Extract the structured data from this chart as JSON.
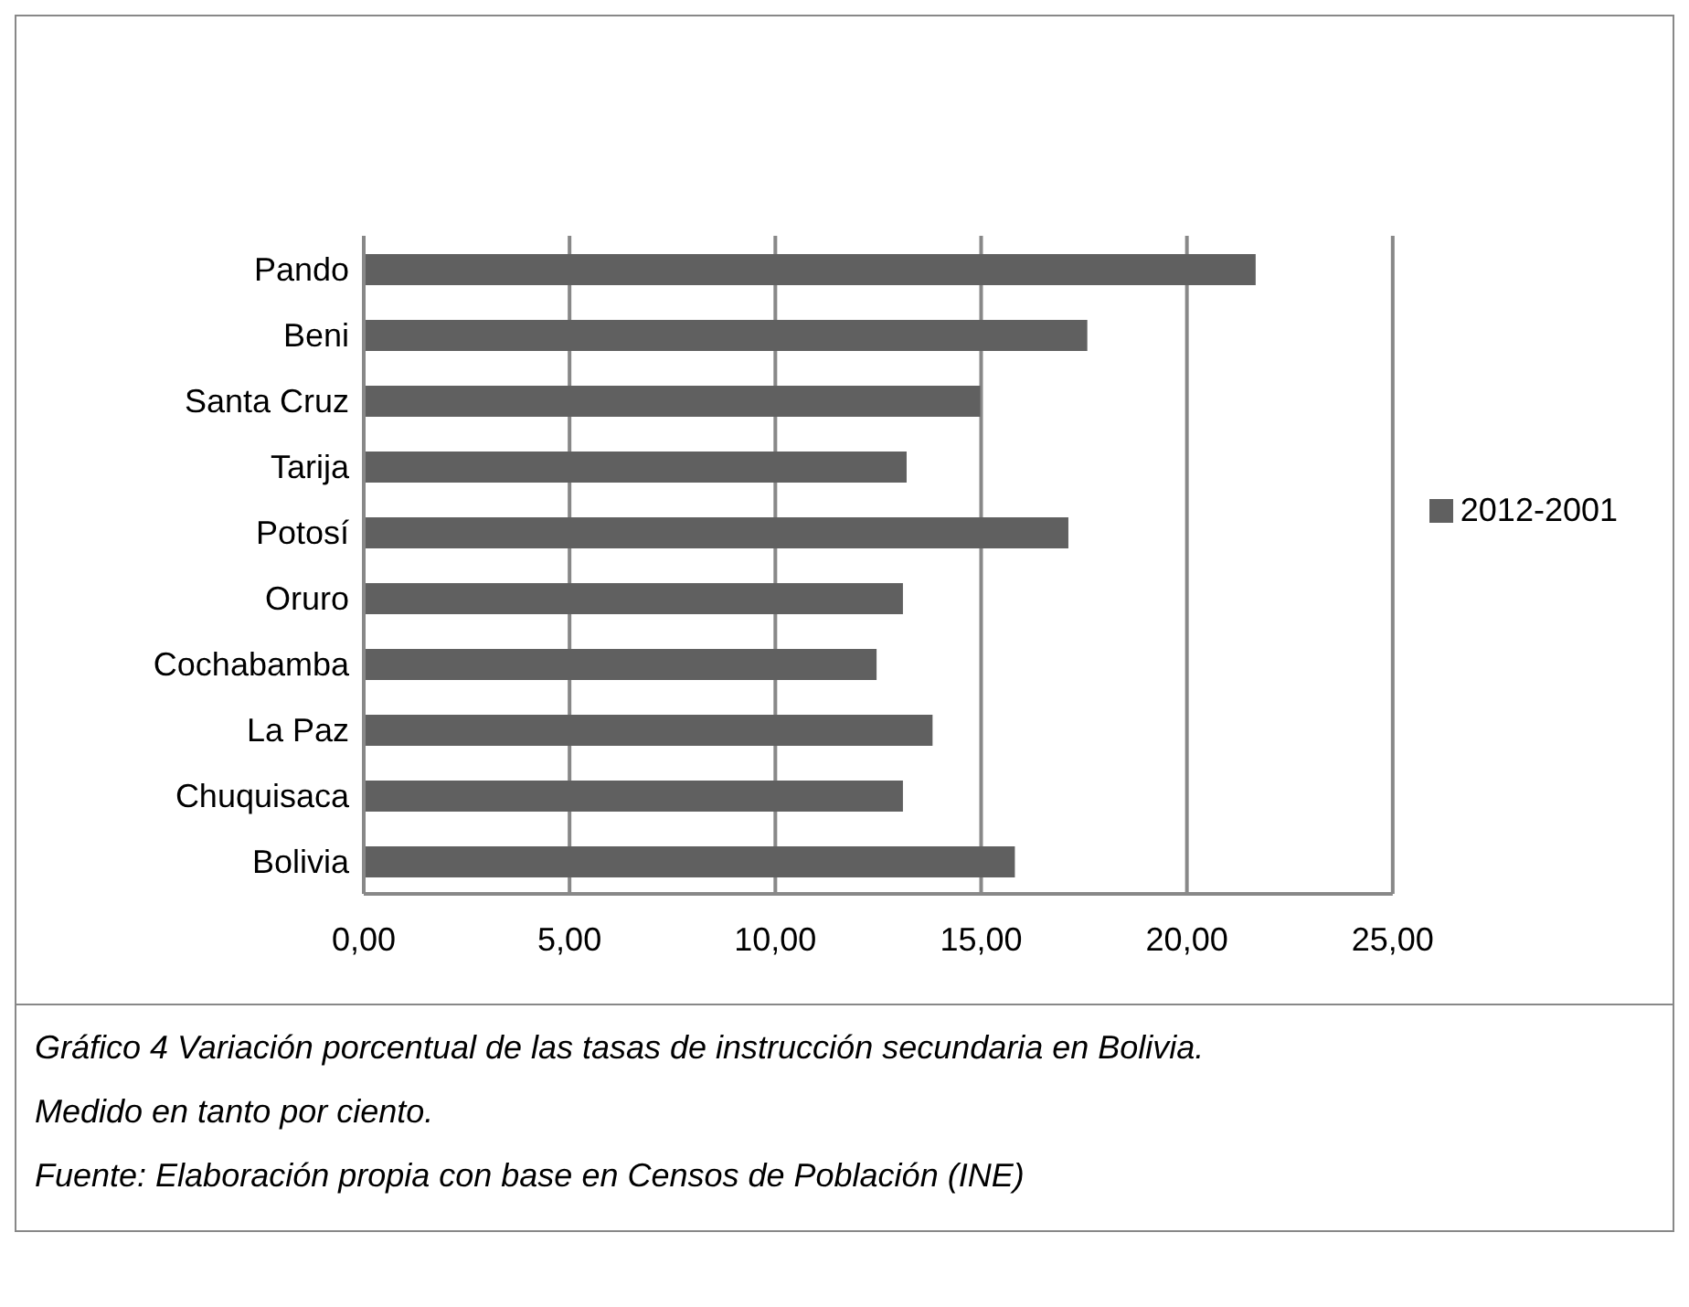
{
  "chart_data": {
    "type": "bar",
    "orientation": "horizontal",
    "categories": [
      "Pando",
      "Beni",
      "Santa Cruz",
      "Tarija",
      "Potosí",
      "Oruro",
      "Cochabamba",
      "La Paz",
      "Chuquisaca",
      "Bolivia"
    ],
    "series": [
      {
        "name": "2012-2001",
        "color": "#606060",
        "values": [
          21.67,
          17.58,
          14.98,
          13.19,
          17.12,
          13.1,
          12.46,
          13.82,
          13.1,
          15.82
        ]
      }
    ],
    "xlim": [
      0,
      25
    ],
    "xticks": [
      {
        "value": 0,
        "label": "0,00"
      },
      {
        "value": 5,
        "label": "5,00"
      },
      {
        "value": 10,
        "label": "10,00"
      },
      {
        "value": 15,
        "label": "15,00"
      },
      {
        "value": 20,
        "label": "20,00"
      },
      {
        "value": 25,
        "label": "25,00"
      }
    ],
    "grid": "x",
    "legend": "right",
    "annotations": [
      "Gráfico 4  Variación porcentual de las tasas de instrucción secundaria en Bolivia.",
      "Medido en tanto por ciento.",
      "Fuente: Elaboración propia con base en Censos de Población (INE)"
    ]
  }
}
